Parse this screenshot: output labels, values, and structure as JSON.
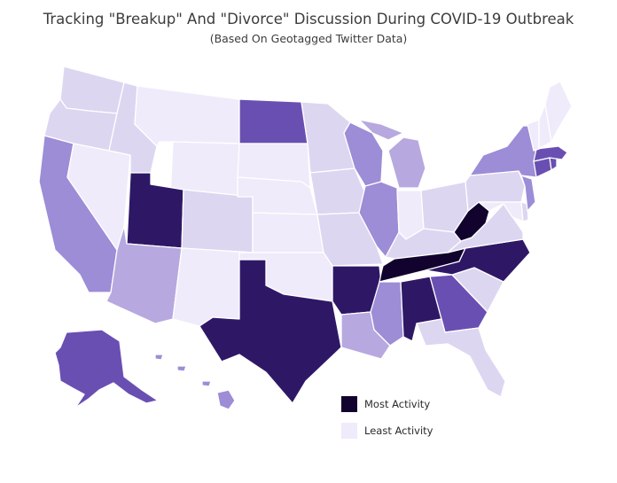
{
  "title": "Tracking \"Breakup\" And \"Divorce\" Discussion During COVID-19 Outbreak",
  "subtitle": "(Based On Geotagged Twitter Data)",
  "legend": [
    {
      "label": "Most Activity",
      "color": "#12032e"
    },
    {
      "label": "Least Activity",
      "color": "#efebfa"
    }
  ],
  "palette": {
    "l1": "#efebfa",
    "l2": "#ddd6f1",
    "l3": "#b7a8e0",
    "l4": "#9d8cd6",
    "l5": "#6a4fb2",
    "l6": "#2e1866",
    "l7": "#12032e"
  },
  "states": {
    "WA": "l2",
    "OR": "l2",
    "CA": "l4",
    "NV": "l1",
    "ID": "l2",
    "MT": "l1",
    "WY": "l1",
    "UT": "l6",
    "AZ": "l3",
    "NM": "l1",
    "CO": "l2",
    "ND": "l5",
    "SD": "l1",
    "NE": "l1",
    "KS": "l1",
    "OK": "l1",
    "TX": "l6",
    "MN": "l2",
    "IA": "l2",
    "MO": "l2",
    "AR": "l6",
    "LA": "l3",
    "WI": "l4",
    "IL": "l4",
    "MI": "l3",
    "IN": "l1",
    "OH": "l2",
    "KY": "l2",
    "TN": "l7",
    "MS": "l4",
    "AL": "l6",
    "GA": "l5",
    "FL": "l2",
    "SC": "l2",
    "NC": "l6",
    "VA": "l2",
    "WV": "l7",
    "PA": "l2",
    "NY": "l4",
    "VT": "l1",
    "NH": "l1",
    "ME": "l1",
    "MA": "l5",
    "CT": "l5",
    "RI": "l5",
    "NJ": "l4",
    "DE": "l2",
    "MD": "l1",
    "AK": "l5",
    "HI": "l4"
  }
}
